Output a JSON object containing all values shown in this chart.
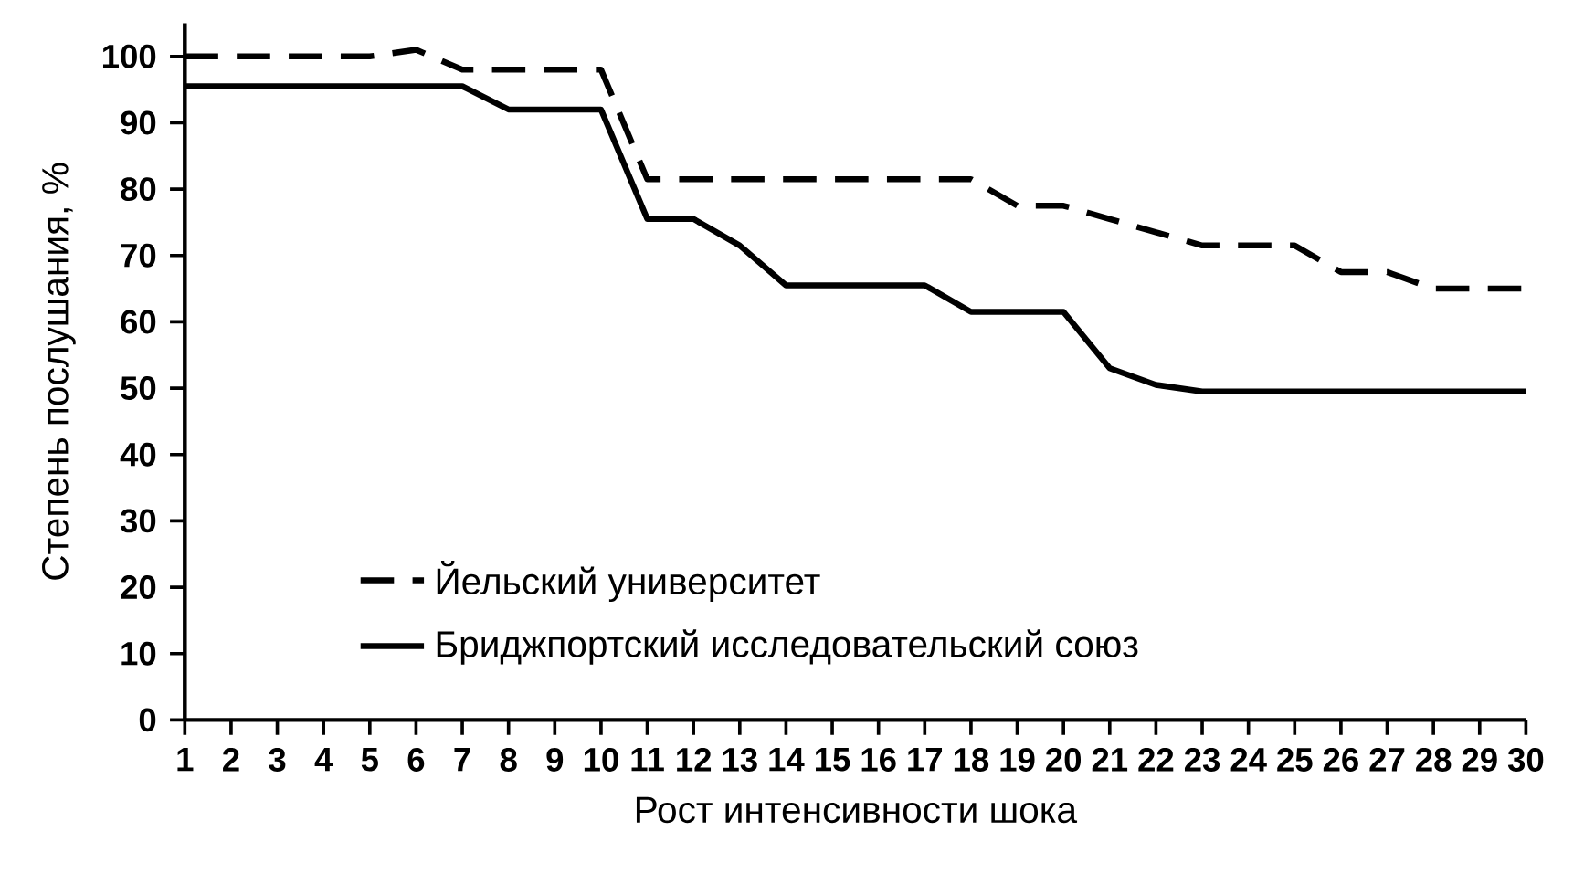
{
  "chart_data": {
    "type": "line",
    "xlabel": "Рост интенсивности шока",
    "ylabel": "Степень послушания, %",
    "x": [
      1,
      2,
      3,
      4,
      5,
      6,
      7,
      8,
      9,
      10,
      11,
      12,
      13,
      14,
      15,
      16,
      17,
      18,
      19,
      20,
      21,
      22,
      23,
      24,
      25,
      26,
      27,
      28,
      29,
      30
    ],
    "series": [
      {
        "name": "Йельский университет",
        "color": "#000000",
        "line_style": "dashed",
        "values": [
          100,
          100,
          100,
          100,
          100,
          101,
          98,
          98,
          98,
          98,
          81.5,
          81.5,
          81.5,
          81.5,
          81.5,
          81.5,
          81.5,
          81.5,
          77.5,
          77.5,
          75.5,
          73.5,
          71.5,
          71.5,
          71.5,
          67.5,
          67.5,
          65,
          65,
          65
        ]
      },
      {
        "name": "Бриджпортский исследовательский союз",
        "color": "#000000",
        "line_style": "solid",
        "values": [
          95.5,
          95.5,
          95.5,
          95.5,
          95.5,
          95.5,
          95.5,
          92,
          92,
          92,
          75.5,
          75.5,
          71.5,
          65.5,
          65.5,
          65.5,
          65.5,
          61.5,
          61.5,
          61.5,
          53,
          50.5,
          49.5,
          49.5,
          49.5,
          49.5,
          49.5,
          49.5,
          49.5,
          49.5
        ]
      }
    ],
    "xlim": [
      1,
      30
    ],
    "xticks": [
      1,
      2,
      3,
      4,
      5,
      6,
      7,
      8,
      9,
      10,
      11,
      12,
      13,
      14,
      15,
      16,
      17,
      18,
      19,
      20,
      21,
      22,
      23,
      24,
      25,
      26,
      27,
      28,
      29,
      30
    ],
    "ylim": [
      0,
      105
    ],
    "yticks": [
      0,
      10,
      20,
      30,
      40,
      50,
      60,
      70,
      80,
      90,
      100
    ],
    "grid": false,
    "legend": "bottom left",
    "marker": "none"
  }
}
